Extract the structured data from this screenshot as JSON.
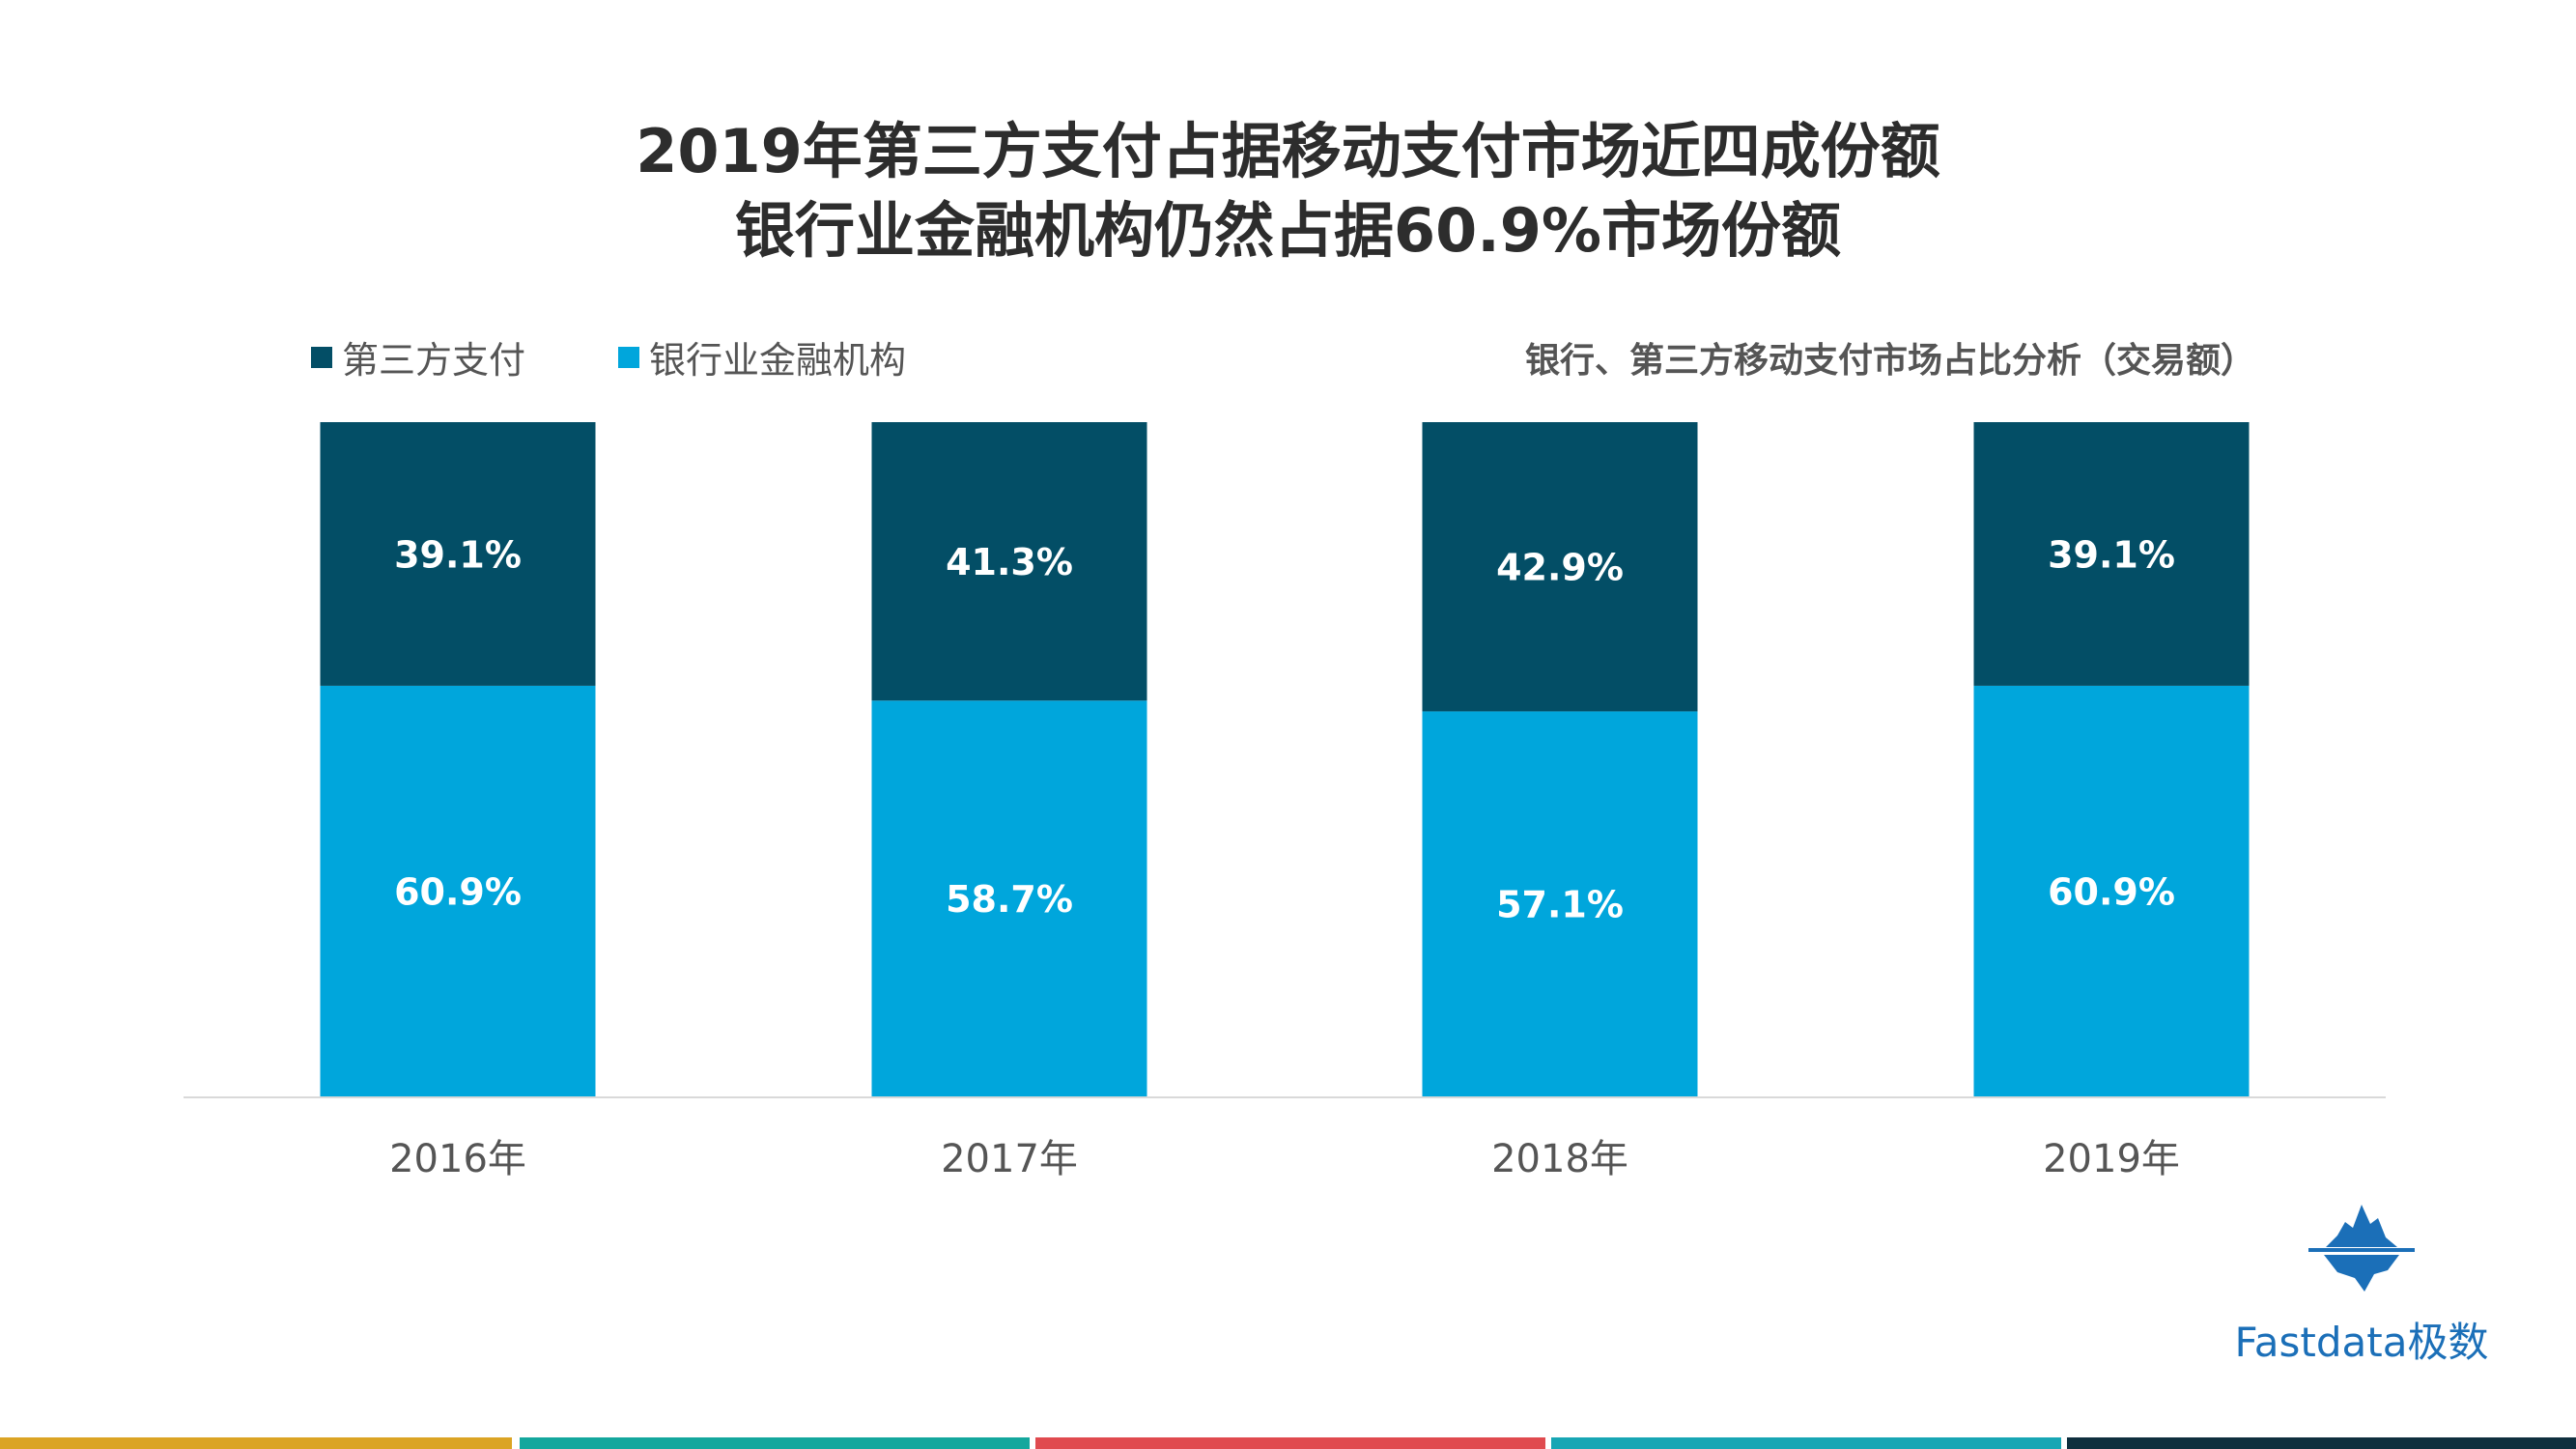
{
  "title_line1": "2019年第三方支付占据移动支付市场近四成份额",
  "title_line2": "银行业金融机构仍然占据60.9%市场份额",
  "subtitle": "银行、第三方移动支付市场占比分析（交易额）",
  "legend": [
    {
      "label": "第三方支付",
      "color": "#034e66"
    },
    {
      "label": "银行业金融机构",
      "color": "#00a6dc"
    }
  ],
  "logo": {
    "text": "Fastdata极数",
    "icon": "iceberg-icon",
    "color": "#1b6fb8"
  },
  "bottom_bar_colors": [
    "#dba424",
    "#14a79d",
    "#e04a4f",
    "#18a6b4",
    "#0f2f3e"
  ],
  "chart_data": {
    "type": "bar",
    "stacked": true,
    "percent": true,
    "title": "银行、第三方移动支付市场占比分析（交易额）",
    "categories": [
      "2016年",
      "2017年",
      "2018年",
      "2019年"
    ],
    "series": [
      {
        "name": "银行业金融机构",
        "values": [
          60.9,
          58.7,
          57.1,
          60.9
        ],
        "labels": [
          "60.9%",
          "58.7%",
          "57.1%",
          "60.9%"
        ],
        "color": "#00a6dc"
      },
      {
        "name": "第三方支付",
        "values": [
          39.1,
          41.3,
          42.9,
          39.1
        ],
        "labels": [
          "39.1%",
          "41.3%",
          "42.9%",
          "39.1%"
        ],
        "color": "#034e66"
      }
    ],
    "ylim": [
      0,
      100
    ],
    "xlabel": "",
    "ylabel": "",
    "grid": false,
    "legend_position": "top-left"
  }
}
